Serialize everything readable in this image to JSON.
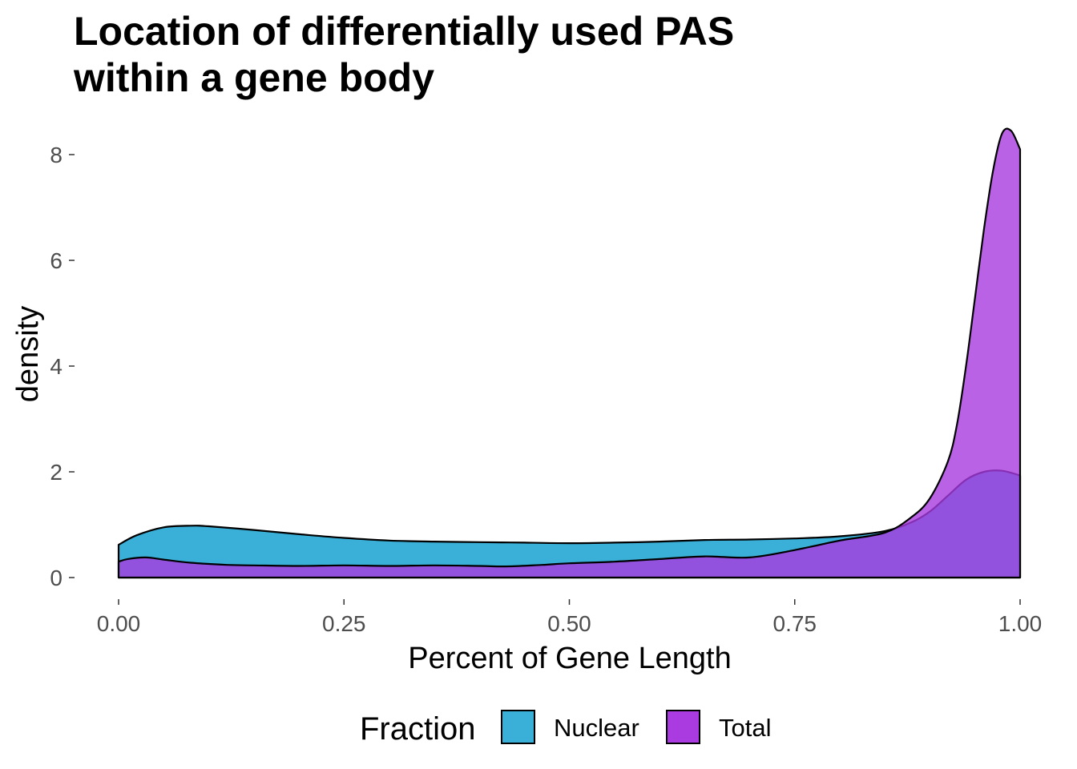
{
  "chart_data": {
    "type": "area",
    "title_lines": [
      "Location of differentially used PAS",
      "within a gene body"
    ],
    "xlabel": "Percent of Gene Length",
    "ylabel": "density",
    "xlim": [
      0,
      1
    ],
    "ylim": [
      0,
      8.5
    ],
    "x_ticks": [
      0,
      0.25,
      0.5,
      0.75,
      1
    ],
    "x_tick_labels": [
      "0.00",
      "0.25",
      "0.50",
      "0.75",
      "1.00"
    ],
    "y_ticks": [
      0,
      2,
      4,
      6,
      8
    ],
    "y_tick_labels": [
      "0",
      "2",
      "4",
      "6",
      "8"
    ],
    "grid": false,
    "legend": {
      "title": "Fraction",
      "position": "bottom"
    },
    "series": [
      {
        "name": "Nuclear",
        "color": "#3AB0D8",
        "x": [
          0,
          0.02,
          0.05,
          0.08,
          0.1,
          0.15,
          0.2,
          0.25,
          0.3,
          0.35,
          0.4,
          0.45,
          0.5,
          0.55,
          0.6,
          0.65,
          0.7,
          0.75,
          0.8,
          0.85,
          0.88,
          0.9,
          0.92,
          0.94,
          0.96,
          0.98,
          1.0
        ],
        "values": [
          0.62,
          0.8,
          0.95,
          0.98,
          0.97,
          0.9,
          0.82,
          0.75,
          0.7,
          0.68,
          0.67,
          0.66,
          0.65,
          0.66,
          0.68,
          0.71,
          0.72,
          0.74,
          0.78,
          0.88,
          1.05,
          1.25,
          1.55,
          1.85,
          2.0,
          2.02,
          1.93
        ]
      },
      {
        "name": "Total",
        "color": "#A93BE0",
        "x": [
          0,
          0.01,
          0.03,
          0.05,
          0.08,
          0.12,
          0.15,
          0.2,
          0.25,
          0.3,
          0.35,
          0.4,
          0.43,
          0.47,
          0.5,
          0.55,
          0.6,
          0.65,
          0.7,
          0.75,
          0.8,
          0.85,
          0.88,
          0.9,
          0.92,
          0.93,
          0.94,
          0.95,
          0.96,
          0.97,
          0.98,
          0.99,
          1.0
        ],
        "values": [
          0.3,
          0.35,
          0.38,
          0.34,
          0.28,
          0.24,
          0.23,
          0.22,
          0.23,
          0.22,
          0.23,
          0.22,
          0.21,
          0.24,
          0.27,
          0.3,
          0.35,
          0.4,
          0.38,
          0.52,
          0.7,
          0.85,
          1.15,
          1.5,
          2.2,
          2.9,
          4.0,
          5.3,
          6.6,
          7.7,
          8.4,
          8.45,
          8.1
        ]
      }
    ]
  }
}
